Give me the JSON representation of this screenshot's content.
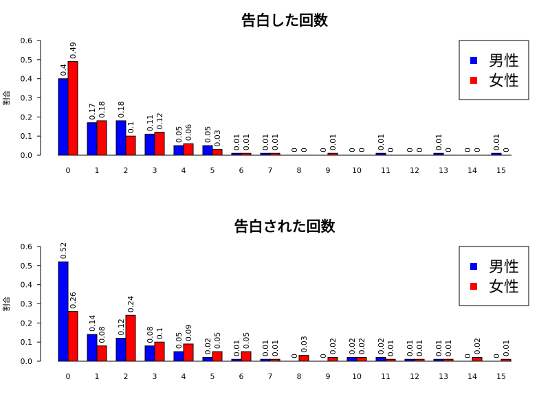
{
  "chart_data": [
    {
      "type": "bar",
      "title": "告白した回数",
      "ylabel": "割合",
      "xlabel": "",
      "ylim": [
        0,
        0.6
      ],
      "yticks": [
        "0.0",
        "0.1",
        "0.2",
        "0.3",
        "0.4",
        "0.5",
        "0.6"
      ],
      "categories": [
        "0",
        "1",
        "2",
        "3",
        "4",
        "5",
        "6",
        "7",
        "8",
        "9",
        "10",
        "11",
        "12",
        "13",
        "14",
        "15"
      ],
      "series": [
        {
          "name": "男性",
          "color": "#0000ff",
          "values": [
            0.4,
            0.17,
            0.18,
            0.11,
            0.05,
            0.05,
            0.01,
            0.01,
            0,
            0,
            0,
            0.01,
            0,
            0.01,
            0,
            0.01
          ],
          "labels": [
            "0.4",
            "0.17",
            "0.18",
            "0.11",
            "0.05",
            "0.05",
            "0.01",
            "0.01",
            "0",
            "0",
            "0",
            "0.01",
            "0",
            "0.01",
            "0",
            "0.01"
          ]
        },
        {
          "name": "女性",
          "color": "#ff0000",
          "values": [
            0.49,
            0.18,
            0.1,
            0.12,
            0.06,
            0.03,
            0.01,
            0.01,
            0,
            0.01,
            0,
            0,
            0,
            0,
            0,
            0
          ],
          "labels": [
            "0.49",
            "0.18",
            "0.1",
            "0.12",
            "0.06",
            "0.03",
            "0.01",
            "0.01",
            "0",
            "0.01",
            "0",
            "0",
            "0",
            "0",
            "0",
            "0"
          ]
        }
      ],
      "legend": "top-right",
      "grid": false
    },
    {
      "type": "bar",
      "title": "告白された回数",
      "ylabel": "割合",
      "xlabel": "",
      "ylim": [
        0,
        0.6
      ],
      "yticks": [
        "0.0",
        "0.1",
        "0.2",
        "0.3",
        "0.4",
        "0.5",
        "0.6"
      ],
      "categories": [
        "0",
        "1",
        "2",
        "3",
        "4",
        "5",
        "6",
        "7",
        "8",
        "9",
        "10",
        "11",
        "12",
        "13",
        "14",
        "15"
      ],
      "series": [
        {
          "name": "男性",
          "color": "#0000ff",
          "values": [
            0.52,
            0.14,
            0.12,
            0.08,
            0.05,
            0.02,
            0.01,
            0.01,
            0,
            0,
            0.02,
            0.02,
            0.01,
            0.01,
            0,
            0
          ],
          "labels": [
            "0.52",
            "0.14",
            "0.12",
            "0.08",
            "0.05",
            "0.02",
            "0.01",
            "0.01",
            "0",
            "0",
            "0.02",
            "0.02",
            "0.01",
            "0.01",
            "0",
            "0"
          ]
        },
        {
          "name": "女性",
          "color": "#ff0000",
          "values": [
            0.26,
            0.08,
            0.24,
            0.1,
            0.09,
            0.05,
            0.05,
            0.01,
            0.03,
            0.02,
            0.02,
            0.01,
            0.01,
            0.01,
            0.02,
            0.01
          ],
          "labels": [
            "0.26",
            "0.08",
            "0.24",
            "0.1",
            "0.09",
            "0.05",
            "0.05",
            "0.01",
            "0.03",
            "0.02",
            "0.02",
            "0.01",
            "0.01",
            "0.01",
            "0.02",
            "0.01"
          ]
        }
      ],
      "legend": "top-right",
      "grid": false
    }
  ]
}
